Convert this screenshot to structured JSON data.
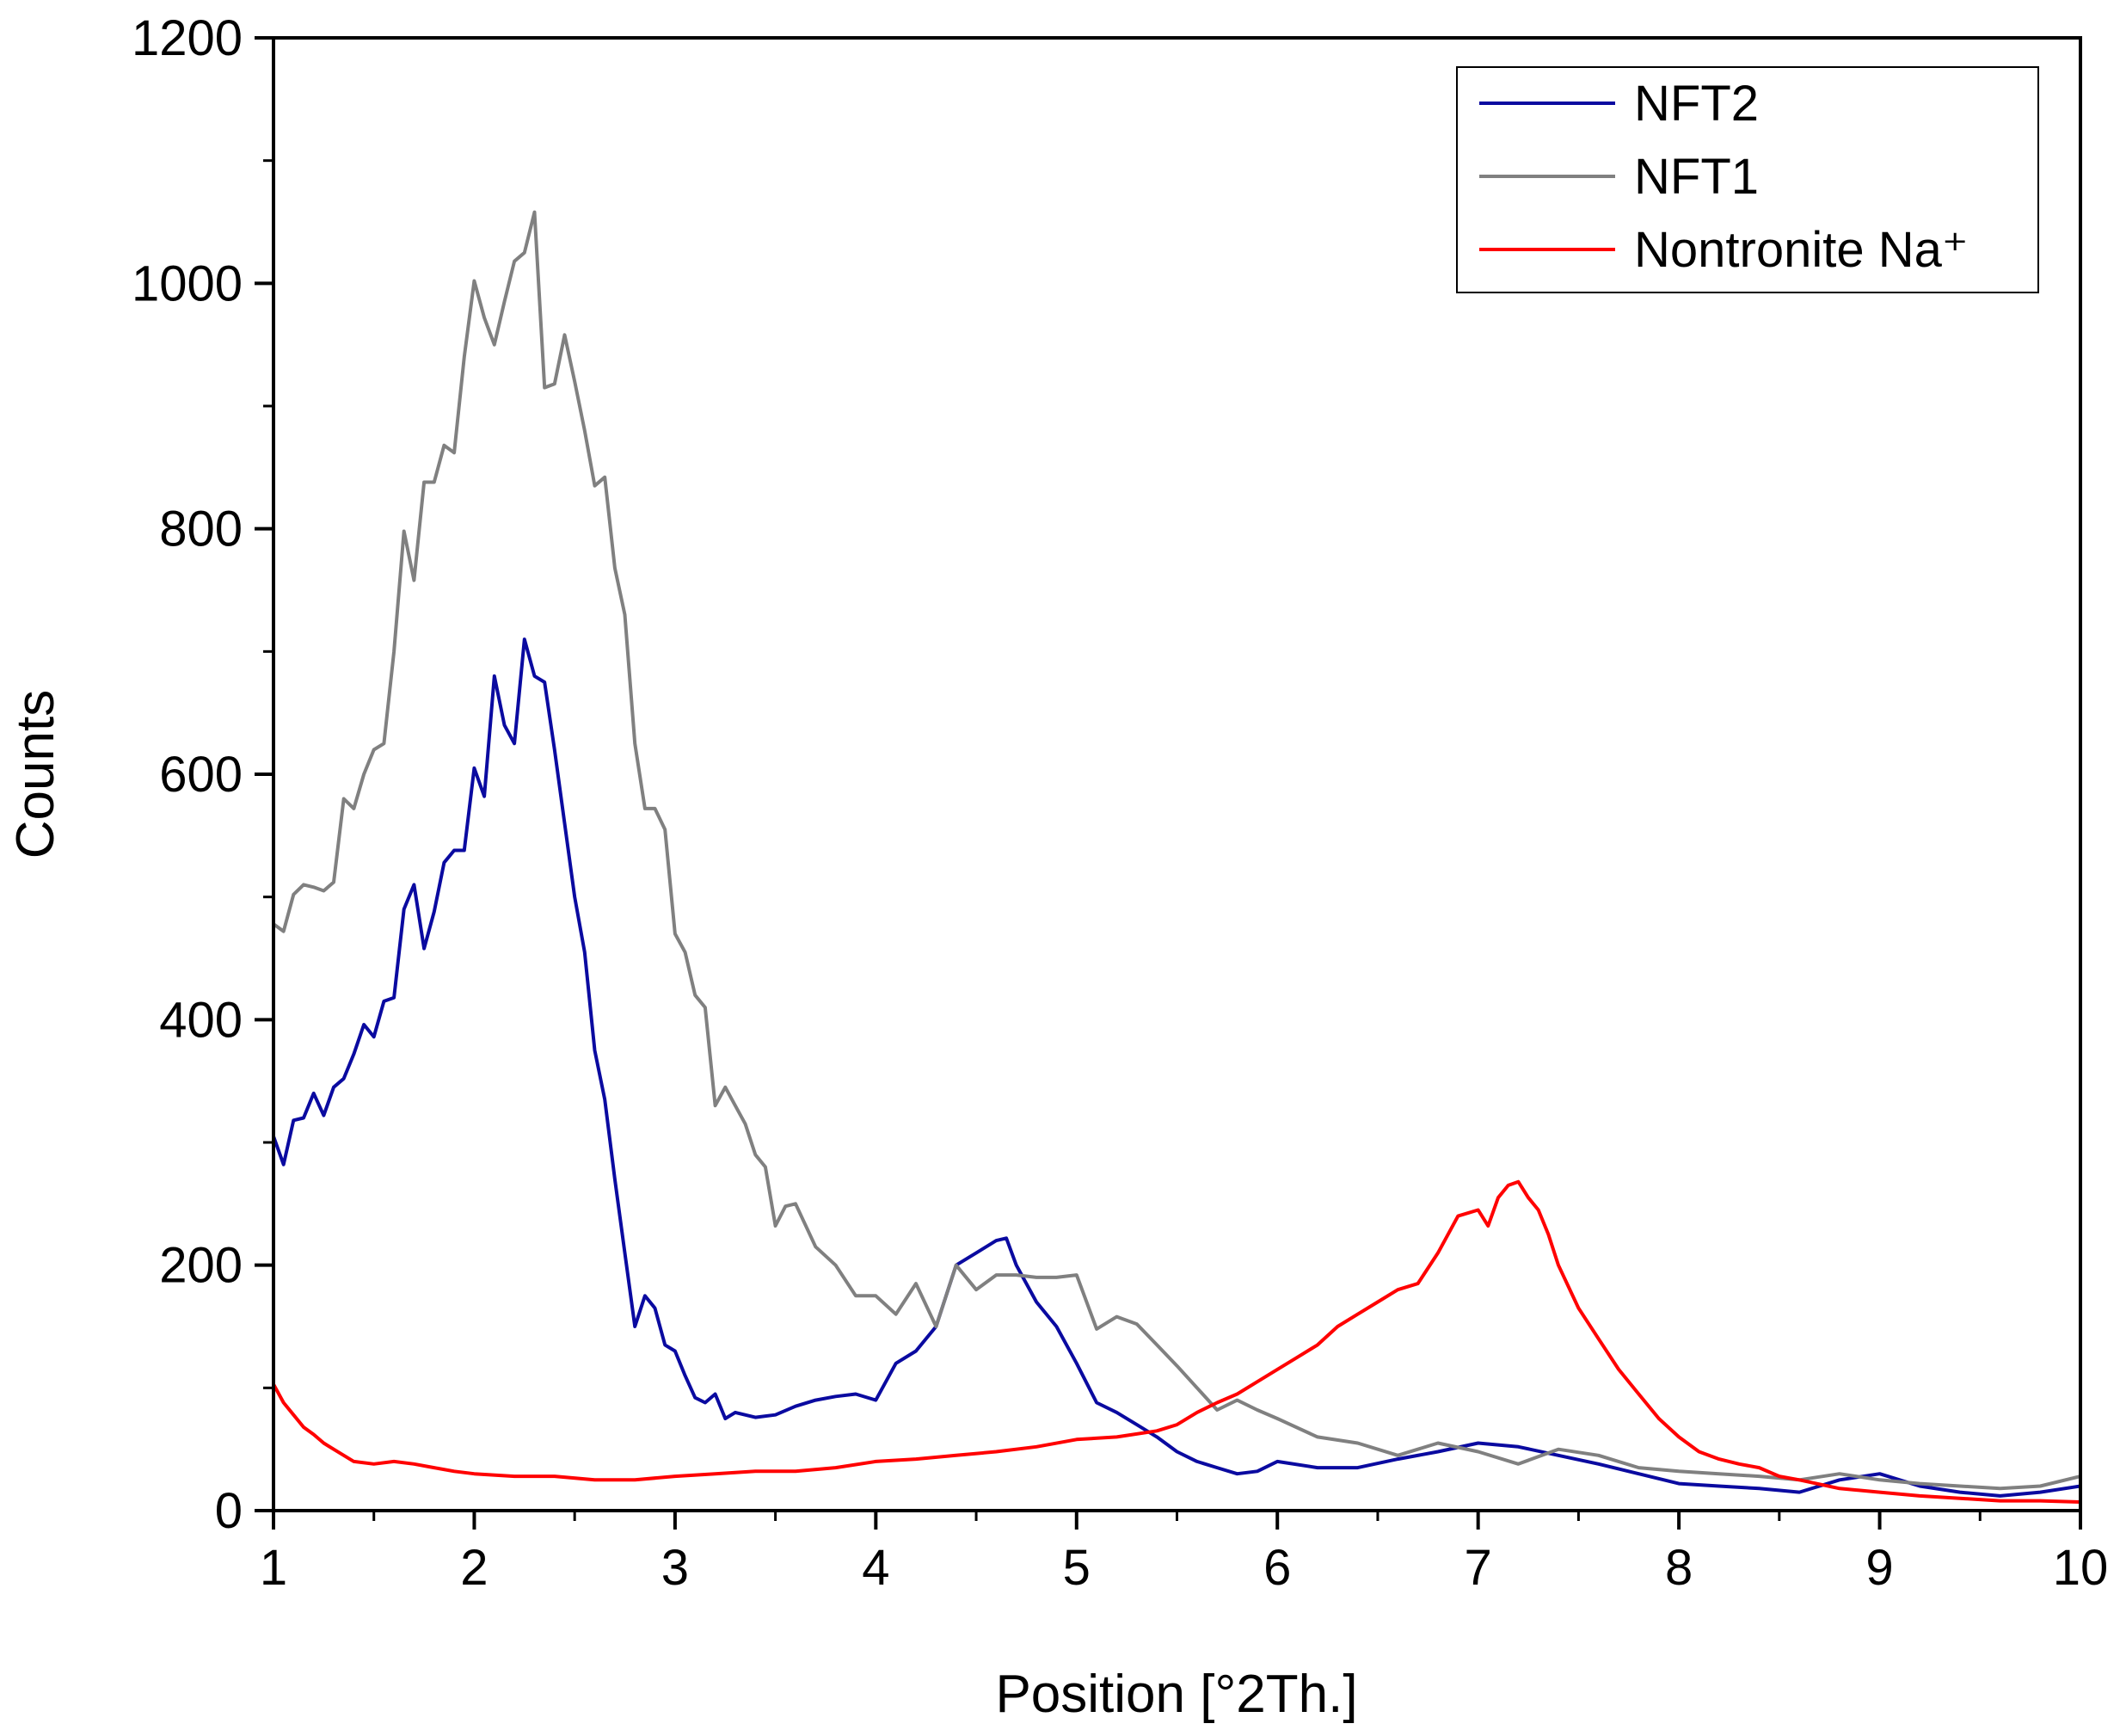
{
  "chart_data": {
    "type": "line",
    "title": "",
    "xlabel": "Position [°2Th.]",
    "ylabel": "Counts",
    "xlim": [
      1,
      10
    ],
    "ylim": [
      0,
      1200
    ],
    "xticks": [
      "1",
      "2",
      "3",
      "4",
      "5",
      "6",
      "7",
      "8",
      "9",
      "10"
    ],
    "yticks": [
      "0",
      "200",
      "400",
      "600",
      "800",
      "1000",
      "1200"
    ],
    "grid": false,
    "legend_position": "top-right",
    "series": [
      {
        "name": "NFT2",
        "color": "#0a0aa0",
        "x": [
          1.0,
          1.05,
          1.1,
          1.15,
          1.2,
          1.25,
          1.3,
          1.35,
          1.4,
          1.45,
          1.5,
          1.55,
          1.6,
          1.65,
          1.7,
          1.75,
          1.8,
          1.85,
          1.9,
          1.95,
          2.0,
          2.05,
          2.1,
          2.15,
          2.2,
          2.25,
          2.3,
          2.35,
          2.4,
          2.45,
          2.5,
          2.55,
          2.6,
          2.65,
          2.7,
          2.75,
          2.8,
          2.85,
          2.9,
          2.95,
          3.0,
          3.05,
          3.1,
          3.15,
          3.2,
          3.25,
          3.3,
          3.4,
          3.5,
          3.6,
          3.7,
          3.8,
          3.9,
          4.0,
          4.1,
          4.2,
          4.3,
          4.4,
          4.5,
          4.6,
          4.65,
          4.7,
          4.8,
          4.9,
          5.0,
          5.1,
          5.2,
          5.3,
          5.4,
          5.5,
          5.6,
          5.7,
          5.8,
          5.9,
          6.0,
          6.2,
          6.4,
          6.6,
          6.8,
          7.0,
          7.2,
          7.4,
          7.6,
          7.8,
          8.0,
          8.2,
          8.4,
          8.6,
          8.8,
          9.0,
          9.2,
          9.4,
          9.6,
          9.8,
          10.0
        ],
        "values": [
          305,
          282,
          318,
          320,
          340,
          322,
          345,
          352,
          372,
          396,
          386,
          415,
          418,
          490,
          510,
          458,
          488,
          528,
          538,
          538,
          605,
          582,
          680,
          640,
          625,
          710,
          680,
          675,
          620,
          560,
          500,
          455,
          375,
          335,
          270,
          210,
          150,
          175,
          165,
          135,
          130,
          110,
          92,
          88,
          95,
          75,
          80,
          76,
          78,
          85,
          90,
          93,
          95,
          90,
          120,
          130,
          150,
          200,
          210,
          220,
          222,
          200,
          170,
          150,
          120,
          88,
          80,
          70,
          60,
          48,
          40,
          35,
          30,
          32,
          40,
          35,
          35,
          42,
          48,
          55,
          52,
          45,
          38,
          30,
          22,
          20,
          18,
          15,
          25,
          30,
          20,
          15,
          12,
          15,
          20
        ]
      },
      {
        "name": "NFT1",
        "color": "#808080",
        "x": [
          1.0,
          1.05,
          1.1,
          1.15,
          1.2,
          1.25,
          1.3,
          1.35,
          1.4,
          1.45,
          1.5,
          1.55,
          1.6,
          1.65,
          1.7,
          1.75,
          1.8,
          1.85,
          1.9,
          1.95,
          2.0,
          2.05,
          2.1,
          2.15,
          2.2,
          2.25,
          2.3,
          2.35,
          2.4,
          2.45,
          2.5,
          2.55,
          2.6,
          2.65,
          2.7,
          2.75,
          2.8,
          2.85,
          2.9,
          2.95,
          3.0,
          3.05,
          3.1,
          3.15,
          3.2,
          3.25,
          3.3,
          3.35,
          3.4,
          3.45,
          3.5,
          3.55,
          3.6,
          3.7,
          3.8,
          3.9,
          4.0,
          4.1,
          4.2,
          4.3,
          4.4,
          4.5,
          4.6,
          4.7,
          4.8,
          4.9,
          5.0,
          5.1,
          5.2,
          5.3,
          5.4,
          5.5,
          5.6,
          5.7,
          5.8,
          5.9,
          6.0,
          6.2,
          6.4,
          6.6,
          6.8,
          7.0,
          7.2,
          7.4,
          7.6,
          7.8,
          8.0,
          8.2,
          8.4,
          8.6,
          8.8,
          9.0,
          9.2,
          9.4,
          9.6,
          9.8,
          10.0
        ],
        "values": [
          478,
          472,
          502,
          510,
          508,
          505,
          512,
          580,
          572,
          600,
          620,
          625,
          700,
          798,
          758,
          838,
          838,
          868,
          862,
          940,
          1002,
          972,
          950,
          985,
          1018,
          1025,
          1058,
          915,
          918,
          958,
          920,
          880,
          835,
          842,
          768,
          730,
          625,
          572,
          572,
          555,
          470,
          455,
          420,
          410,
          330,
          345,
          330,
          315,
          290,
          280,
          232,
          248,
          250,
          215,
          200,
          175,
          175,
          160,
          185,
          150,
          200,
          180,
          192,
          192,
          190,
          190,
          192,
          148,
          158,
          152,
          135,
          118,
          100,
          82,
          90,
          82,
          75,
          60,
          55,
          45,
          55,
          48,
          38,
          50,
          45,
          35,
          32,
          30,
          28,
          25,
          30,
          25,
          22,
          20,
          18,
          20,
          28
        ]
      },
      {
        "name": "Nontronite Na⁺",
        "color": "#ff0000",
        "x": [
          1.0,
          1.05,
          1.1,
          1.15,
          1.2,
          1.25,
          1.3,
          1.35,
          1.4,
          1.5,
          1.6,
          1.7,
          1.8,
          1.9,
          2.0,
          2.2,
          2.4,
          2.6,
          2.8,
          3.0,
          3.2,
          3.4,
          3.6,
          3.8,
          4.0,
          4.2,
          4.4,
          4.6,
          4.8,
          5.0,
          5.2,
          5.4,
          5.5,
          5.6,
          5.7,
          5.8,
          5.9,
          6.0,
          6.1,
          6.2,
          6.3,
          6.4,
          6.5,
          6.6,
          6.7,
          6.8,
          6.9,
          7.0,
          7.05,
          7.1,
          7.15,
          7.2,
          7.25,
          7.3,
          7.35,
          7.4,
          7.5,
          7.6,
          7.7,
          7.8,
          7.9,
          8.0,
          8.1,
          8.2,
          8.3,
          8.4,
          8.5,
          8.6,
          8.8,
          9.0,
          9.2,
          9.4,
          9.6,
          9.8,
          10.0
        ],
        "values": [
          103,
          88,
          78,
          68,
          62,
          55,
          50,
          45,
          40,
          38,
          40,
          38,
          35,
          32,
          30,
          28,
          28,
          25,
          25,
          28,
          30,
          32,
          32,
          35,
          40,
          42,
          45,
          48,
          52,
          58,
          60,
          65,
          70,
          80,
          88,
          95,
          105,
          115,
          125,
          135,
          150,
          160,
          170,
          180,
          185,
          210,
          240,
          245,
          232,
          255,
          265,
          268,
          255,
          245,
          225,
          200,
          165,
          140,
          115,
          95,
          75,
          60,
          48,
          42,
          38,
          35,
          28,
          25,
          18,
          15,
          12,
          10,
          8,
          8,
          7
        ]
      }
    ]
  }
}
